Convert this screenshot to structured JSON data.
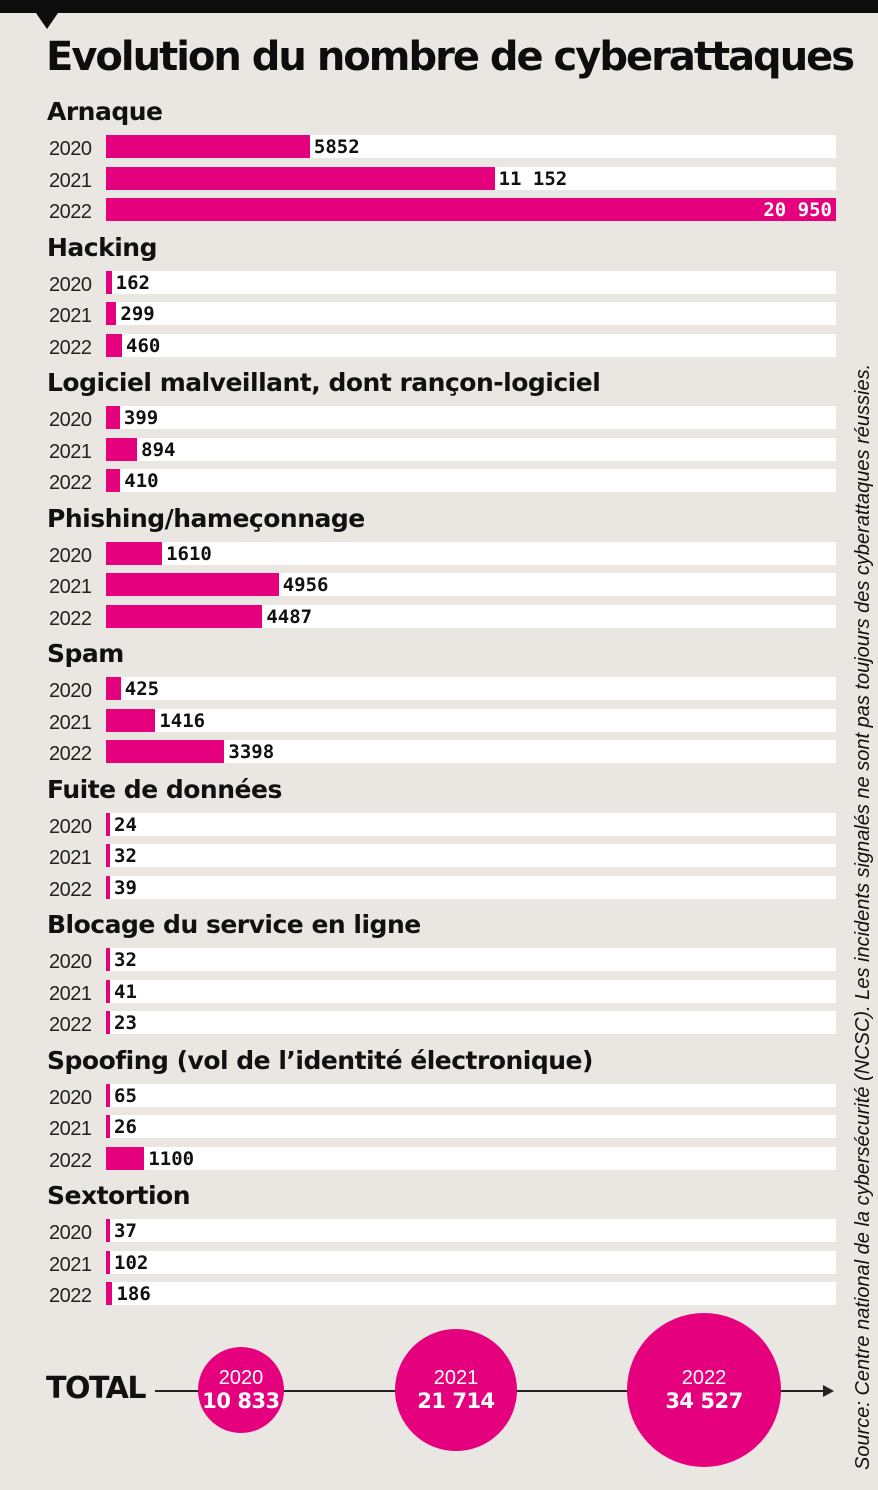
{
  "chart_data": {
    "type": "bar",
    "orientation": "horizontal",
    "title": "Evolution du nombre de cyberattaques",
    "xlim": [
      0,
      20950
    ],
    "categories": [
      {
        "name": "Arnaque",
        "data": [
          {
            "year": "2020",
            "value": 5852,
            "label": "5852"
          },
          {
            "year": "2021",
            "value": 11152,
            "label": "11 152"
          },
          {
            "year": "2022",
            "value": 20950,
            "label": "20 950"
          }
        ]
      },
      {
        "name": "Hacking",
        "data": [
          {
            "year": "2020",
            "value": 162,
            "label": "162"
          },
          {
            "year": "2021",
            "value": 299,
            "label": "299"
          },
          {
            "year": "2022",
            "value": 460,
            "label": "460"
          }
        ]
      },
      {
        "name": "Logiciel malveillant, dont rançon-logiciel",
        "data": [
          {
            "year": "2020",
            "value": 399,
            "label": "399"
          },
          {
            "year": "2021",
            "value": 894,
            "label": "894"
          },
          {
            "year": "2022",
            "value": 410,
            "label": "410"
          }
        ]
      },
      {
        "name": "Phishing/hameçonnage",
        "data": [
          {
            "year": "2020",
            "value": 1610,
            "label": "1610"
          },
          {
            "year": "2021",
            "value": 4956,
            "label": "4956"
          },
          {
            "year": "2022",
            "value": 4487,
            "label": "4487"
          }
        ]
      },
      {
        "name": "Spam",
        "data": [
          {
            "year": "2020",
            "value": 425,
            "label": "425"
          },
          {
            "year": "2021",
            "value": 1416,
            "label": "1416"
          },
          {
            "year": "2022",
            "value": 3398,
            "label": "3398"
          }
        ]
      },
      {
        "name": "Fuite de données",
        "data": [
          {
            "year": "2020",
            "value": 24,
            "label": "24"
          },
          {
            "year": "2021",
            "value": 32,
            "label": "32"
          },
          {
            "year": "2022",
            "value": 39,
            "label": "39"
          }
        ]
      },
      {
        "name": "Blocage du service en ligne",
        "data": [
          {
            "year": "2020",
            "value": 32,
            "label": "32"
          },
          {
            "year": "2021",
            "value": 41,
            "label": "41"
          },
          {
            "year": "2022",
            "value": 23,
            "label": "23"
          }
        ]
      },
      {
        "name": "Spoofing (vol de l’identité électronique)",
        "data": [
          {
            "year": "2020",
            "value": 65,
            "label": "65"
          },
          {
            "year": "2021",
            "value": 26,
            "label": "26"
          },
          {
            "year": "2022",
            "value": 1100,
            "label": "1100"
          }
        ]
      },
      {
        "name": "Sextortion",
        "data": [
          {
            "year": "2020",
            "value": 37,
            "label": "37"
          },
          {
            "year": "2021",
            "value": 102,
            "label": "102"
          },
          {
            "year": "2022",
            "value": 186,
            "label": "186"
          }
        ]
      }
    ],
    "totals": {
      "label": "TOTAL",
      "items": [
        {
          "year": "2020",
          "value": 10833,
          "label": "10 833"
        },
        {
          "year": "2021",
          "value": 21714,
          "label": "21 714"
        },
        {
          "year": "2022",
          "value": 34527,
          "label": "34 527"
        }
      ]
    },
    "source": "Source: Centre national de la cybersécurité (NCSC). Les incidents signalés ne sont pas toujours des cyberattaques réussies.",
    "colors": {
      "bar": "#e5007e",
      "track": "#ffffff",
      "background": "#eae7e2",
      "text": "#111111"
    }
  }
}
